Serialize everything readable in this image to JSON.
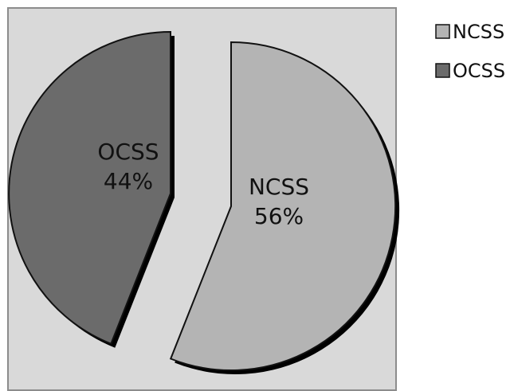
{
  "chart_data": {
    "type": "pie",
    "title": "",
    "slices": [
      {
        "label": "NCSS",
        "value": 56,
        "percent_label": "56%",
        "color": "#b4b4b4"
      },
      {
        "label": "OCSS",
        "value": 44,
        "percent_label": "44%",
        "color": "#6b6b6b"
      }
    ],
    "exploded": true,
    "plot_area_background": "#d9d9d9",
    "legend": {
      "position": "top-right",
      "items": [
        {
          "label": "NCSS",
          "color": "#b4b4b4"
        },
        {
          "label": "OCSS",
          "color": "#6b6b6b"
        }
      ]
    }
  }
}
